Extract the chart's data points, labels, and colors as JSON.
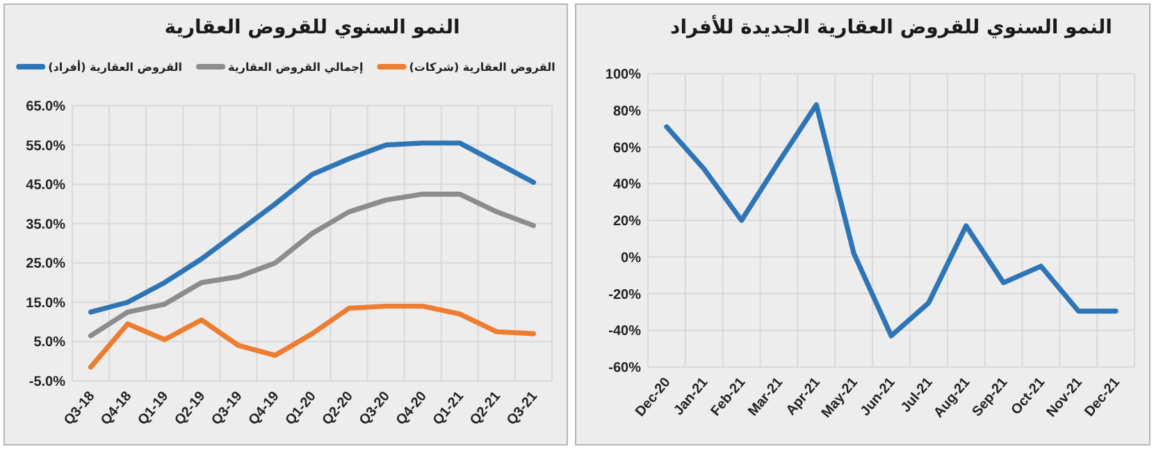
{
  "chart_data": [
    {
      "type": "line",
      "title": "النمو السنوي للقروض العقارية",
      "categories": [
        "Q3-18",
        "Q4-18",
        "Q1-19",
        "Q2-19",
        "Q3-19",
        "Q4-19",
        "Q1-20",
        "Q2-20",
        "Q3-20",
        "Q4-20",
        "Q1-21",
        "Q2-21",
        "Q3-21"
      ],
      "series": [
        {
          "name": "القروض العقارية (أفراد)",
          "color": "#2e75b6",
          "values": [
            12.5,
            15,
            20,
            26,
            33,
            40,
            47.5,
            51.5,
            55,
            55.5,
            55.5,
            50.5,
            45.5
          ]
        },
        {
          "name": "إجمالي القروض العقارية",
          "color": "#8c8c8c",
          "values": [
            6.5,
            12.5,
            14.5,
            20,
            21.5,
            25,
            32.5,
            38,
            41,
            42.5,
            42.5,
            38,
            34.5
          ]
        },
        {
          "name": "القروض العقارية (شركات)",
          "color": "#ed7d31",
          "values": [
            -1.5,
            9.5,
            5.5,
            10.5,
            4,
            1.5,
            7,
            13.5,
            14,
            14,
            12,
            7.5,
            7
          ]
        }
      ],
      "ylim": [
        -5,
        65
      ],
      "yticks": [
        {
          "value": -5,
          "label": "-5.0%"
        },
        {
          "value": 5,
          "label": "5.0%"
        },
        {
          "value": 15,
          "label": "15.0%"
        },
        {
          "value": 25,
          "label": "25.0%"
        },
        {
          "value": 35,
          "label": "35.0%"
        },
        {
          "value": 45,
          "label": "45.0%"
        },
        {
          "value": 55,
          "label": "55.0%"
        },
        {
          "value": 65,
          "label": "65.0%"
        }
      ],
      "grid": true,
      "legend": "top",
      "marker": "none",
      "line_style": "solid"
    },
    {
      "type": "line",
      "title": "النمو السنوي للقروض العقارية الجديدة للأفراد",
      "categories": [
        "Dec-20",
        "Jan-21",
        "Feb-21",
        "Mar-21",
        "Apr-21",
        "May-21",
        "Jun-21",
        "Jul-21",
        "Aug-21",
        "Sep-21",
        "Oct-21",
        "Nov-21",
        "Dec-21"
      ],
      "series": [
        {
          "color": "#2e75b6",
          "values": [
            71,
            48,
            20,
            52,
            83,
            2,
            -43,
            -25,
            17,
            -14,
            -5,
            -29.5,
            -29.5
          ]
        }
      ],
      "ylim": [
        -60,
        100
      ],
      "yticks": [
        {
          "value": -60,
          "label": "-60%"
        },
        {
          "value": -40,
          "label": "-40%"
        },
        {
          "value": -20,
          "label": "-20%"
        },
        {
          "value": 0,
          "label": "0%"
        },
        {
          "value": 20,
          "label": "20%"
        },
        {
          "value": 40,
          "label": "40%"
        },
        {
          "value": 60,
          "label": "60%"
        },
        {
          "value": 80,
          "label": "80%"
        },
        {
          "value": 100,
          "label": "100%"
        }
      ],
      "grid": true,
      "marker": "none",
      "line_style": "solid"
    }
  ]
}
